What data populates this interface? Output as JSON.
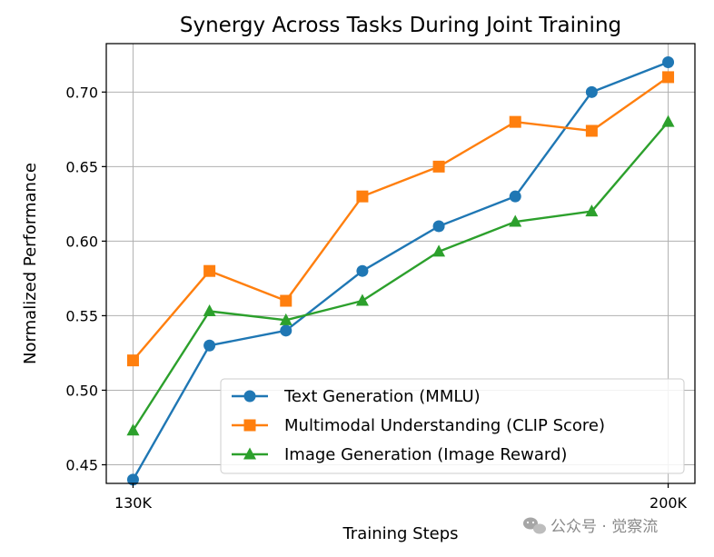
{
  "chart_data": {
    "type": "line",
    "title": "Synergy Across Tasks During Joint Training",
    "xlabel": "Training Steps",
    "ylabel": "Normalized Performance",
    "x": [
      130000,
      141667,
      152333,
      163000,
      174667,
      185333,
      196000,
      200000
    ],
    "x_ticks": [
      {
        "value": 130000,
        "label": "130K"
      },
      {
        "value": 200000,
        "label": "200K"
      }
    ],
    "y_ticks": [
      {
        "value": 0.45,
        "label": "0.45"
      },
      {
        "value": 0.5,
        "label": "0.50"
      },
      {
        "value": 0.55,
        "label": "0.55"
      },
      {
        "value": 0.6,
        "label": "0.60"
      },
      {
        "value": 0.65,
        "label": "0.65"
      },
      {
        "value": 0.7,
        "label": "0.70"
      }
    ],
    "xlim": [
      126500,
      203500
    ],
    "ylim": [
      0.4375,
      0.7325
    ],
    "grid": true,
    "legend_position": "lower-right",
    "series": [
      {
        "name": "Text Generation (MMLU)",
        "color": "#1f77b4",
        "marker": "circle",
        "x": [
          130000,
          140000,
          150000,
          160000,
          170000,
          180000,
          190000,
          200000
        ],
        "values": [
          0.44,
          0.53,
          0.54,
          0.58,
          0.61,
          0.63,
          0.7,
          0.72
        ]
      },
      {
        "name": "Multimodal Understanding (CLIP Score)",
        "color": "#ff7f0e",
        "marker": "square",
        "x": [
          130000,
          140000,
          150000,
          160000,
          170000,
          180000,
          190000,
          200000
        ],
        "values": [
          0.52,
          0.58,
          0.56,
          0.63,
          0.65,
          0.68,
          0.674,
          0.71
        ]
      },
      {
        "name": "Image Generation (Image Reward)",
        "color": "#2ca02c",
        "marker": "triangle",
        "x": [
          130000,
          140000,
          150000,
          160000,
          170000,
          180000,
          190000,
          200000
        ],
        "values": [
          0.473,
          0.553,
          0.547,
          0.56,
          0.593,
          0.613,
          0.62,
          0.68
        ]
      }
    ]
  },
  "watermark": {
    "text": "公众号 · 觉察流",
    "icon": "wechat-icon"
  }
}
